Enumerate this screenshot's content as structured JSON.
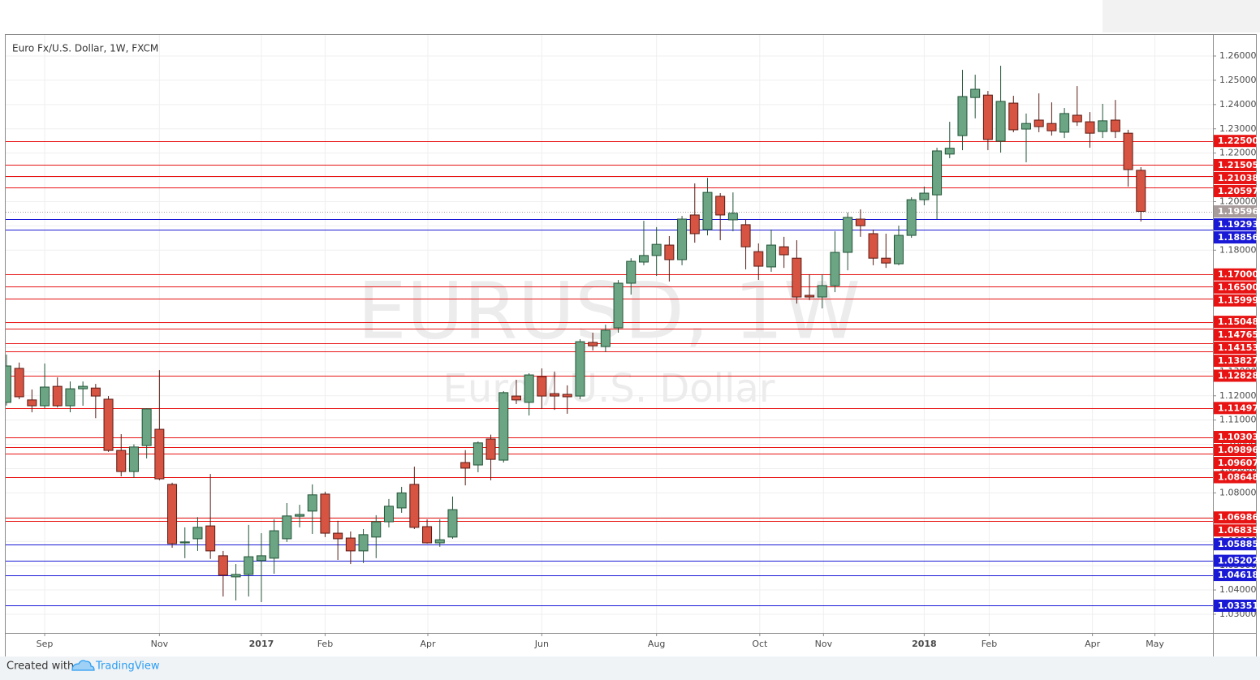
{
  "chart_data": {
    "type": "candlestick",
    "title": "Euro Fx/U.S. Dollar, 1W, FXCM",
    "watermark": "EURUSD, 1W",
    "watermark_subtitle": "Euro / U.S. Dollar",
    "footer": "Created with",
    "brand": "TradingView",
    "up_color": "#6ba583",
    "down_color": "#d75442",
    "up_border": "#225437",
    "down_border": "#5b1a13",
    "grid": true,
    "categories": [
      null,
      null,
      null,
      null,
      null,
      null,
      null,
      null,
      null,
      null,
      null,
      null,
      null,
      null,
      null,
      null,
      null,
      null,
      null,
      null,
      null,
      null,
      null,
      null,
      null,
      null,
      null,
      null,
      null,
      null,
      null,
      null,
      null,
      null,
      null,
      null,
      null,
      null,
      null,
      null,
      null,
      null,
      null,
      null,
      null,
      null,
      null,
      null,
      null,
      null,
      null,
      null,
      null,
      null,
      null,
      null,
      null,
      null,
      null,
      null,
      null,
      null,
      null,
      null,
      null,
      null,
      null,
      null,
      null,
      null,
      null,
      null,
      null,
      null,
      null,
      null,
      null,
      null,
      null,
      null,
      null,
      null,
      null,
      null,
      null,
      null,
      null,
      null,
      null,
      null
    ],
    "open": [
      1.1173,
      1.1313,
      1.1183,
      1.1159,
      1.1239,
      1.1159,
      1.1229,
      1.1232,
      1.1186,
      1.0975,
      1.0888,
      1.0995,
      1.1062,
      1.0835,
      1.0594,
      1.0611,
      1.0664,
      1.0541,
      1.0454,
      1.0464,
      1.0521,
      1.0531,
      1.0611,
      1.0704,
      1.0725,
      1.0795,
      1.0634,
      1.0614,
      1.0561,
      1.0618,
      1.0681,
      1.0738,
      1.0835,
      1.0661,
      1.0594,
      1.0618,
      1.0925,
      1.0915,
      1.1022,
      1.0935,
      1.1199,
      1.1173,
      1.1279,
      1.1209,
      1.1206,
      1.1199,
      1.142,
      1.1403,
      1.148,
      1.1664,
      1.1751,
      1.1778,
      1.1821,
      1.1761,
      1.1945,
      1.1885,
      1.2022,
      1.1925,
      1.1905,
      1.1794,
      1.1731,
      1.1814,
      1.1767,
      1.1614,
      1.1607,
      1.1654,
      1.1791,
      1.1928,
      1.1868,
      1.1767,
      1.1744,
      1.1861,
      1.2008,
      1.2028,
      1.2196,
      1.2272,
      1.2429,
      1.2439,
      1.2249,
      1.2406,
      1.2299,
      1.2336,
      1.2322,
      1.2286,
      1.2356,
      1.2329,
      1.2289,
      1.2336,
      1.2282,
      1.2129
    ],
    "high": [
      1.137,
      1.1337,
      1.1226,
      1.1333,
      1.1276,
      1.1259,
      1.1259,
      1.1249,
      1.1199,
      1.1042,
      1.1,
      1.1149,
      1.1306,
      1.0842,
      1.0658,
      1.07,
      1.0878,
      1.0561,
      1.0507,
      1.0668,
      1.0634,
      1.0691,
      1.0758,
      1.0751,
      1.0835,
      1.0805,
      1.0685,
      1.0641,
      1.0651,
      1.0708,
      1.0775,
      1.0825,
      1.0908,
      1.0691,
      1.0691,
      1.0785,
      1.0976,
      1.1012,
      1.104,
      1.1219,
      1.1266,
      1.1293,
      1.1313,
      1.13,
      1.1243,
      1.1433,
      1.146,
      1.1493,
      1.1677,
      1.1767,
      1.1921,
      1.1895,
      1.1858,
      1.1941,
      1.2075,
      1.2098,
      1.2035,
      1.2038,
      1.1928,
      1.1828,
      1.1885,
      1.1855,
      1.1841,
      1.1701,
      1.1701,
      1.1878,
      1.1955,
      1.1968,
      1.1885,
      1.1868,
      1.1901,
      1.2018,
      1.2062,
      1.2222,
      1.2329,
      1.2543,
      1.2523,
      1.2456,
      1.256,
      1.2436,
      1.2363,
      1.2446,
      1.2409,
      1.2386,
      1.2476,
      1.2369,
      1.2403,
      1.2419,
      1.2296,
      1.2142
    ],
    "low": [
      1.116,
      1.1186,
      1.1132,
      1.1149,
      1.1152,
      1.1132,
      1.1159,
      1.1108,
      1.0969,
      1.0868,
      1.0862,
      1.0942,
      1.0852,
      1.0574,
      1.0531,
      1.0561,
      1.0528,
      1.0373,
      1.0357,
      1.0373,
      1.035,
      1.0467,
      1.0598,
      1.0658,
      1.0631,
      1.0618,
      1.0524,
      1.0507,
      1.0511,
      1.0531,
      1.0658,
      1.0718,
      1.0651,
      1.0591,
      1.0578,
      1.0611,
      1.0831,
      1.0885,
      1.0852,
      1.0925,
      1.1166,
      1.1119,
      1.1146,
      1.1142,
      1.1126,
      1.1186,
      1.1387,
      1.138,
      1.146,
      1.1617,
      1.1738,
      1.1694,
      1.1671,
      1.1738,
      1.1831,
      1.1861,
      1.1841,
      1.1878,
      1.1721,
      1.1677,
      1.1711,
      1.1727,
      1.158,
      1.1594,
      1.156,
      1.1627,
      1.1717,
      1.1855,
      1.1738,
      1.1727,
      1.1738,
      1.1851,
      1.1985,
      1.1928,
      1.2179,
      1.2212,
      1.2343,
      1.2212,
      1.2202,
      1.2286,
      1.2162,
      1.2286,
      1.2272,
      1.2262,
      1.2312,
      1.2222,
      1.2262,
      1.2262,
      1.2062,
      1.1918
    ],
    "close": [
      1.1323,
      1.1196,
      1.1159,
      1.1236,
      1.1159,
      1.1229,
      1.1239,
      1.1199,
      1.0975,
      1.0888,
      1.0989,
      1.1146,
      1.0858,
      1.0591,
      1.0598,
      1.0658,
      1.0561,
      1.0461,
      1.0464,
      1.0537,
      1.0541,
      1.0644,
      1.0705,
      1.0711,
      1.0792,
      1.0634,
      1.0611,
      1.0561,
      1.0628,
      1.0681,
      1.0745,
      1.08,
      1.0658,
      1.0594,
      1.0607,
      1.0731,
      1.0902,
      1.1006,
      1.0938,
      1.1213,
      1.1183,
      1.1286,
      1.1199,
      1.1199,
      1.1196,
      1.1423,
      1.1406,
      1.147,
      1.1664,
      1.1754,
      1.1778,
      1.1824,
      1.1761,
      1.1928,
      1.1868,
      1.2038,
      1.1945,
      1.1952,
      1.1814,
      1.1734,
      1.1821,
      1.1781,
      1.1607,
      1.1607,
      1.1654,
      1.1791,
      1.1935,
      1.1901,
      1.1767,
      1.1747,
      1.1861,
      1.2008,
      1.2035,
      1.2209,
      1.222,
      1.2433,
      1.2463,
      1.2256,
      1.2413,
      1.2296,
      1.2322,
      1.2309,
      1.2292,
      1.2363,
      1.2329,
      1.2282,
      1.2333,
      1.2289,
      1.2132,
      1.196
    ],
    "xlim": [
      -0.06,
      94.65
    ],
    "xticks": [
      {
        "value": 3.0,
        "label": "Sep"
      },
      {
        "value": 12.0,
        "label": "Nov"
      },
      {
        "value": 20.0,
        "label": "2017"
      },
      {
        "value": 25.0,
        "label": "Feb"
      },
      {
        "value": 33.06,
        "label": "Apr"
      },
      {
        "value": 42.0,
        "label": "Jun"
      },
      {
        "value": 51.0,
        "label": "Aug"
      },
      {
        "value": 59.1,
        "label": "Oct"
      },
      {
        "value": 64.1,
        "label": "Nov"
      },
      {
        "value": 72.0,
        "label": "2018"
      },
      {
        "value": 77.1,
        "label": "Feb"
      },
      {
        "value": 85.2,
        "label": "Apr"
      },
      {
        "value": 90.1,
        "label": "May"
      }
    ],
    "ylim": [
      1.0223,
      1.2687
    ],
    "yticks": [
      {
        "value": 1.26,
        "label": "1.26000"
      },
      {
        "value": 1.25,
        "label": "1.25000"
      },
      {
        "value": 1.24,
        "label": "1.24000"
      },
      {
        "value": 1.23,
        "label": "1.23000"
      },
      {
        "value": 1.22,
        "label": "1.22000"
      },
      {
        "value": 1.21,
        "label": "1.21000"
      },
      {
        "value": 1.2,
        "label": "1.20000"
      },
      {
        "value": 1.19,
        "label": "1.19000"
      },
      {
        "value": 1.18,
        "label": "1.18000"
      },
      {
        "value": 1.17,
        "label": "1.17000"
      },
      {
        "value": 1.16,
        "label": "1.16000"
      },
      {
        "value": 1.15,
        "label": "1.15000"
      },
      {
        "value": 1.14,
        "label": "1.14000"
      },
      {
        "value": 1.13,
        "label": "1.13000"
      },
      {
        "value": 1.12,
        "label": "1.12000"
      },
      {
        "value": 1.11,
        "label": "1.11000"
      },
      {
        "value": 1.1,
        "label": "1.10000"
      },
      {
        "value": 1.09,
        "label": "1.09000"
      },
      {
        "value": 1.08,
        "label": "1.08000"
      },
      {
        "value": 1.07,
        "label": "1.07000"
      },
      {
        "value": 1.06,
        "label": "1.06000"
      },
      {
        "value": 1.05,
        "label": "1.05000"
      },
      {
        "value": 1.04,
        "label": "1.04000"
      },
      {
        "value": 1.03,
        "label": "1.03000"
      }
    ],
    "levels": [
      {
        "value": 1.225,
        "label": "1.22500",
        "color": "#e81414"
      },
      {
        "value": 1.21505,
        "label": "1.21505",
        "color": "#e81414"
      },
      {
        "value": 1.21038,
        "label": "1.21038",
        "color": "#e81414"
      },
      {
        "value": 1.20597,
        "label": "1.20597",
        "color": "#e81414"
      },
      {
        "value": 1.19293,
        "label": "1.19293",
        "color": "#1a1ad6"
      },
      {
        "value": 1.18856,
        "label": "1.18856",
        "color": "#1a1ad6"
      },
      {
        "value": 1.17,
        "label": "1.17000",
        "color": "#e81414"
      },
      {
        "value": 1.165,
        "label": "1.16500",
        "color": "#e81414"
      },
      {
        "value": 1.15999,
        "label": "1.15999",
        "color": "#e81414"
      },
      {
        "value": 1.15048,
        "label": "1.15048",
        "color": "#e81414"
      },
      {
        "value": 1.14765,
        "label": "1.14765",
        "color": "#e81414"
      },
      {
        "value": 1.14153,
        "label": "1.14153",
        "color": "#e81414"
      },
      {
        "value": 1.13827,
        "label": "1.13827",
        "color": "#e81414"
      },
      {
        "value": 1.12828,
        "label": "1.12828",
        "color": "#e81414"
      },
      {
        "value": 1.11497,
        "label": "1.11497",
        "color": "#e81414"
      },
      {
        "value": 1.10303,
        "label": "1.10303",
        "color": "#e81414"
      },
      {
        "value": 1.09896,
        "label": "1.09896",
        "color": "#e81414"
      },
      {
        "value": 1.09607,
        "label": "1.09607",
        "color": "#e81414"
      },
      {
        "value": 1.08648,
        "label": "1.08648",
        "color": "#e81414"
      },
      {
        "value": 1.06986,
        "label": "1.06986",
        "color": "#e81414"
      },
      {
        "value": 1.06835,
        "label": "1.06835",
        "color": "#e81414"
      },
      {
        "value": 1.05885,
        "label": "1.05885",
        "color": "#1a1ad6"
      },
      {
        "value": 1.05202,
        "label": "1.05202",
        "color": "#1a1ad6"
      },
      {
        "value": 1.04618,
        "label": "1.04618",
        "color": "#1a1ad6"
      },
      {
        "value": 1.03351,
        "label": "1.03351",
        "color": "#1a1ad6"
      }
    ],
    "last_price": {
      "value": 1.19596,
      "label": "1.19596",
      "color": "#a89b9b"
    }
  }
}
